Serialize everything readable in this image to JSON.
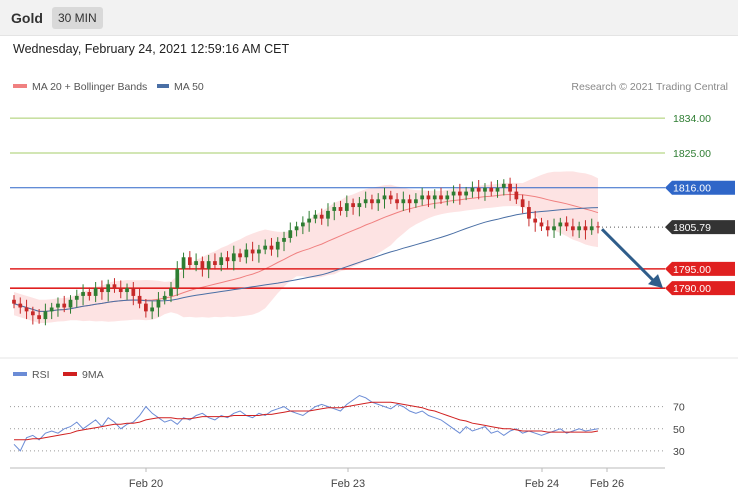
{
  "header": {
    "symbol": "Gold",
    "timeframe": "30 MIN"
  },
  "date_line": "Wednesday, February 24, 2021 12:59:16 AM CET",
  "legend": {
    "ma20_label": "MA 20 + Bollinger Bands",
    "ma50_label": "MA 50",
    "copyright": "Research © 2021 Trading Central"
  },
  "rsi_legend": {
    "rsi_label": "RSI",
    "ma_label": "9MA"
  },
  "colors": {
    "up": "#2e7d32",
    "down": "#c62828",
    "ma20": "#f08080",
    "ma50": "#4a6fa5",
    "band": "#fde3e3",
    "support": "#e02020",
    "resistance": "#a6ce6a",
    "pivot": "#2f66c8",
    "arrow": "#2f5d8a",
    "rsi": "#6b8cd6"
  },
  "chart_data": [
    {
      "type": "candlestick",
      "x_labels": [
        "Feb 20",
        "Feb 23",
        "Feb 24",
        "Feb 26"
      ],
      "ylim": [
        1774,
        1840
      ],
      "levels": [
        {
          "value": 1834.0,
          "label": "1834.00",
          "kind": "resistance"
        },
        {
          "value": 1825.0,
          "label": "1825.00",
          "kind": "resistance"
        },
        {
          "value": 1816.0,
          "label": "1816.00",
          "kind": "pivot"
        },
        {
          "value": 1805.79,
          "label": "1805.79",
          "kind": "last"
        },
        {
          "value": 1795.0,
          "label": "1795.00",
          "kind": "support"
        },
        {
          "value": 1790.0,
          "label": "1790.00",
          "kind": "support"
        }
      ],
      "close": [
        1786,
        1785,
        1784,
        1783,
        1782,
        1784,
        1785,
        1786,
        1785,
        1787,
        1788,
        1789,
        1788,
        1790,
        1789,
        1791,
        1790,
        1789,
        1790,
        1788,
        1786,
        1784,
        1785,
        1787,
        1788,
        1790,
        1795,
        1798,
        1796,
        1797,
        1795,
        1797,
        1796,
        1798,
        1797,
        1799,
        1798,
        1800,
        1799,
        1800,
        1801,
        1800,
        1802,
        1803,
        1805,
        1806,
        1807,
        1808,
        1809,
        1808,
        1810,
        1811,
        1810,
        1812,
        1811,
        1812,
        1813,
        1812,
        1813,
        1814,
        1813,
        1812,
        1813,
        1812,
        1813,
        1814,
        1813,
        1814,
        1813,
        1814,
        1815,
        1814,
        1815,
        1816,
        1815,
        1816,
        1815,
        1816,
        1817,
        1815,
        1813,
        1811,
        1808,
        1807,
        1806,
        1805,
        1806,
        1807,
        1806,
        1805,
        1806,
        1805,
        1806,
        1805.79
      ],
      "last": 1805.79,
      "projection": {
        "from": 1805.79,
        "to": 1790.0
      }
    },
    {
      "type": "line",
      "ylim": [
        20,
        85
      ],
      "yticks": [
        30,
        50,
        70
      ],
      "series": [
        {
          "name": "RSI",
          "values": [
            36,
            30,
            42,
            44,
            40,
            46,
            48,
            46,
            50,
            52,
            56,
            50,
            54,
            58,
            52,
            60,
            56,
            50,
            54,
            56,
            62,
            70,
            64,
            60,
            56,
            58,
            54,
            60,
            58,
            62,
            64,
            60,
            58,
            62,
            60,
            64,
            66,
            62,
            60,
            64,
            62,
            66,
            68,
            70,
            66,
            64,
            62,
            66,
            70,
            72,
            70,
            68,
            66,
            72,
            76,
            80,
            78,
            74,
            72,
            70,
            68,
            72,
            70,
            66,
            64,
            66,
            62,
            60,
            58,
            54,
            50,
            46,
            52,
            48,
            50,
            52,
            46,
            48,
            44,
            48,
            50,
            46,
            48,
            46,
            44,
            46,
            48,
            50,
            46,
            48,
            50,
            48,
            49,
            50
          ]
        },
        {
          "name": "9MA",
          "values": [
            40,
            40,
            40,
            41,
            41,
            42,
            43,
            44,
            45,
            46,
            48,
            49,
            50,
            51,
            52,
            53,
            54,
            54,
            55,
            55,
            56,
            58,
            59,
            60,
            60,
            60,
            59,
            59,
            59,
            60,
            61,
            61,
            61,
            61,
            61,
            62,
            62,
            62,
            62,
            62,
            63,
            63,
            64,
            65,
            66,
            66,
            66,
            66,
            67,
            68,
            69,
            69,
            69,
            70,
            71,
            72,
            73,
            74,
            74,
            74,
            74,
            73,
            72,
            71,
            70,
            69,
            67,
            66,
            64,
            62,
            60,
            58,
            57,
            55,
            54,
            53,
            52,
            51,
            50,
            50,
            49,
            48,
            48,
            48,
            48,
            47,
            47,
            47,
            47,
            47,
            47,
            47,
            47,
            48
          ]
        }
      ]
    }
  ]
}
